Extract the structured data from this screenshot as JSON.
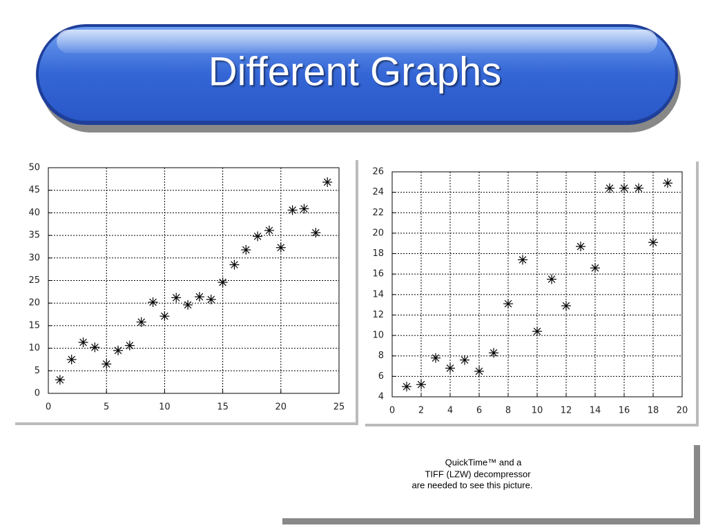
{
  "slide": {
    "title": "Different Graphs",
    "placeholder_lines": [
      "QuickTime™ and a",
      "TIFF (LZW) decompressor",
      "are needed to see this picture."
    ]
  },
  "chart_data": [
    {
      "type": "scatter",
      "marker": "asterisk",
      "color": "#000000",
      "grid": true,
      "x": [
        1,
        2,
        3,
        4,
        5,
        6,
        7,
        8,
        9,
        10,
        11,
        12,
        13,
        14,
        15,
        16,
        17,
        18,
        19,
        20,
        21,
        22,
        23,
        24
      ],
      "values": [
        3,
        7.5,
        11.3,
        10.2,
        6.5,
        9.5,
        10.6,
        15.8,
        20.2,
        17.1,
        21.2,
        19.6,
        21.4,
        20.8,
        24.6,
        28.5,
        31.8,
        34.8,
        36.1,
        32.3,
        40.6,
        40.9,
        35.6,
        46.8
      ],
      "xlim": [
        0,
        25
      ],
      "xticks": [
        0,
        5,
        10,
        15,
        20,
        25
      ],
      "ylim": [
        0,
        50
      ],
      "yticks": [
        0,
        5,
        10,
        15,
        20,
        25,
        30,
        35,
        40,
        45,
        50
      ]
    },
    {
      "type": "scatter",
      "marker": "asterisk",
      "color": "#000000",
      "grid": true,
      "x": [
        1,
        2,
        3,
        4,
        5,
        6,
        7,
        8,
        9,
        10,
        11,
        12,
        13,
        14,
        15,
        16,
        17,
        18,
        19
      ],
      "values": [
        5,
        5.2,
        7.8,
        6.8,
        7.6,
        6.5,
        8.3,
        13.1,
        17.4,
        10.4,
        15.5,
        12.9,
        18.7,
        16.6,
        24.4,
        24.4,
        24.4,
        19.1,
        24.9
      ],
      "xlim": [
        0,
        20
      ],
      "xticks": [
        0,
        2,
        4,
        6,
        8,
        10,
        12,
        14,
        16,
        18,
        20
      ],
      "ylim": [
        4,
        26
      ],
      "yticks": [
        4,
        6,
        8,
        10,
        12,
        14,
        16,
        18,
        20,
        22,
        24,
        26
      ]
    }
  ]
}
